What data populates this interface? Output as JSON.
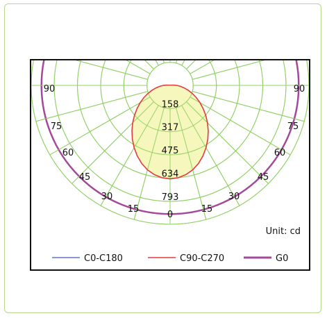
{
  "chart_data": {
    "type": "polar",
    "unit_label": "Unit: cd",
    "angle_labels": {
      "left": [
        "90",
        "75",
        "60",
        "45",
        "30",
        "15"
      ],
      "bottom": "0",
      "right": [
        "15",
        "30",
        "45",
        "60",
        "75",
        "90"
      ]
    },
    "radial_ticks": [
      158,
      317,
      475,
      634,
      793
    ],
    "rmax": 950,
    "angle_step_deg": 15,
    "fill_color": "#f4f6b0",
    "series": [
      {
        "name": "C0-C180",
        "color": "#5b73c9",
        "angles": [],
        "values": []
      },
      {
        "name": "C90-C270",
        "color": "#e23b3b",
        "angles": [
          0,
          5,
          10,
          15,
          20,
          25,
          30,
          35,
          40,
          45,
          50,
          55,
          60,
          65,
          70,
          75,
          80,
          85,
          90,
          95,
          100
        ],
        "values": [
          640,
          634,
          620,
          598,
          568,
          532,
          492,
          450,
          406,
          362,
          318,
          276,
          236,
          198,
          162,
          128,
          98,
          70,
          46,
          26,
          10
        ]
      },
      {
        "name": "G0",
        "color": "#a3489b",
        "angles": [
          0,
          15,
          30,
          45,
          60,
          75,
          90,
          105,
          120
        ],
        "values": [
          880,
          880,
          880,
          880,
          880,
          880,
          880,
          880,
          880
        ]
      }
    ]
  }
}
